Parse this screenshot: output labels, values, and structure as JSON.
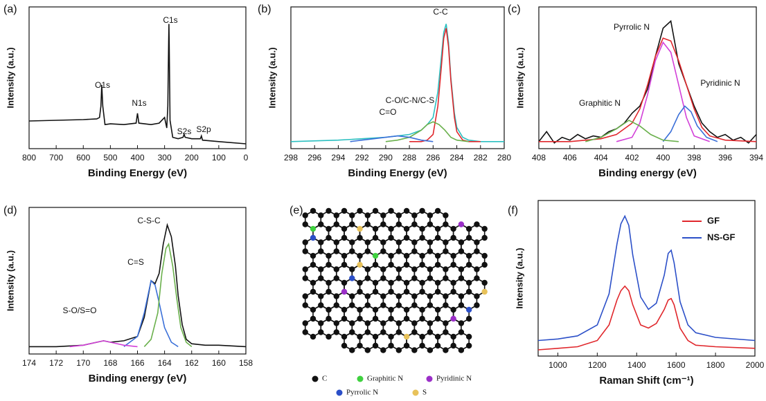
{
  "chart_data": [
    {
      "type": "line",
      "label": "(a)",
      "xlabel": "Binding Energy (eV)",
      "ylabel": "Intensity (a.u.)",
      "xlim": [
        800,
        0
      ],
      "xticks": [
        800,
        700,
        600,
        500,
        400,
        300,
        200,
        100,
        0
      ],
      "ylim": [
        0,
        100
      ],
      "series": [
        {
          "color": "#111111",
          "x": [
            800,
            700,
            600,
            550,
            540,
            535,
            532,
            528,
            520,
            500,
            450,
            405,
            400,
            395,
            350,
            320,
            300,
            292,
            288,
            285,
            284,
            283,
            280,
            270,
            250,
            232,
            228,
            224,
            200,
            168,
            164,
            160,
            100,
            0
          ],
          "values": [
            19.5,
            20,
            20.5,
            21,
            22,
            30,
            45,
            30,
            17,
            17.5,
            17,
            18,
            25,
            18,
            17,
            18,
            22,
            14.6,
            30,
            75,
            88,
            75,
            20,
            8,
            7,
            8,
            10,
            8,
            7,
            7,
            9,
            6,
            5,
            3.4
          ]
        }
      ],
      "annotations": [
        {
          "text": "O1s",
          "color": "#111111"
        },
        {
          "text": "N1s",
          "color": "#111111"
        },
        {
          "text": "C1s",
          "color": "#111111"
        },
        {
          "text": "S2s",
          "color": "#111111"
        },
        {
          "text": "S2p",
          "color": "#111111"
        }
      ]
    },
    {
      "type": "line",
      "label": "(b)",
      "xlabel": "Binding Energy (eV)",
      "ylabel": "Intensity (a.u.)",
      "xlim": [
        298,
        280
      ],
      "xticks": [
        298,
        296,
        294,
        292,
        290,
        288,
        286,
        284,
        282,
        280
      ],
      "ylim": [
        0,
        100
      ],
      "series": [
        {
          "color": "#2bbfc0",
          "x": [
            298,
            294,
            292,
            290,
            289,
            288,
            287,
            286.5,
            286,
            285.6,
            285.3,
            285.1,
            284.9,
            284.7,
            284.5,
            284.2,
            284,
            283.5,
            283,
            282,
            280
          ],
          "values": [
            5,
            6,
            7,
            8,
            9,
            10,
            13,
            17,
            22,
            40,
            65,
            82,
            88,
            75,
            50,
            25,
            15,
            8,
            6,
            5,
            5
          ]
        },
        {
          "color": "#e0262b",
          "x": [
            288,
            287,
            286.5,
            286,
            285.6,
            285.3,
            285.1,
            284.9,
            284.7,
            284.5,
            284.2,
            284,
            283.5,
            283,
            282
          ],
          "values": [
            5,
            5,
            6,
            10,
            30,
            58,
            78,
            85,
            72,
            48,
            22,
            12,
            6,
            5,
            5
          ]
        },
        {
          "color": "#6ab04c",
          "x": [
            290,
            289,
            288,
            287,
            286.5,
            286,
            285.5,
            285,
            284.5,
            284,
            283
          ],
          "values": [
            5,
            6,
            8,
            13,
            17,
            19,
            17,
            13,
            8,
            6,
            5
          ]
        },
        {
          "color": "#3a6fd8",
          "x": [
            293,
            292,
            291,
            290,
            289,
            288,
            287,
            286
          ],
          "values": [
            5,
            6,
            7,
            8,
            9,
            8,
            6,
            5
          ]
        }
      ],
      "annotations": [
        {
          "text": "C-C",
          "color": "#e0262b"
        },
        {
          "text": "C-O/C-N/C-S",
          "color": "#6ab04c"
        },
        {
          "text": "C=O",
          "color": "#3a6fd8"
        }
      ]
    },
    {
      "type": "line",
      "label": "(c)",
      "xlabel": "Binding energy (eV)",
      "ylabel": "Intensity (a.u.)",
      "xlim": [
        408,
        394
      ],
      "xticks": [
        408,
        406,
        404,
        402,
        400,
        398,
        396,
        394
      ],
      "ylim": [
        0,
        100
      ],
      "series": [
        {
          "color": "#111111",
          "x": [
            408,
            407.5,
            407,
            406.5,
            406,
            405.5,
            405,
            404.5,
            404,
            403.5,
            403,
            402.5,
            402,
            401.5,
            401,
            400.5,
            400,
            399.5,
            399,
            398.5,
            398,
            397.5,
            397,
            396.5,
            396,
            395.5,
            395,
            394.5,
            394
          ],
          "values": [
            5,
            12,
            4,
            8,
            6,
            10,
            7,
            9,
            8,
            12,
            14,
            18,
            25,
            30,
            42,
            65,
            85,
            90,
            60,
            45,
            30,
            18,
            12,
            8,
            10,
            6,
            8,
            4,
            10
          ]
        },
        {
          "color": "#e0262b",
          "x": [
            408,
            406,
            404,
            403,
            402,
            401.5,
            401,
            400.5,
            400,
            399.5,
            399,
            398.5,
            398,
            397.5,
            397,
            396,
            394
          ],
          "values": [
            5,
            5,
            7,
            10,
            18,
            28,
            45,
            65,
            78,
            76,
            62,
            45,
            28,
            15,
            9,
            6,
            5
          ]
        },
        {
          "color": "#d23fd8",
          "x": [
            403,
            402,
            401.5,
            401,
            400.5,
            400,
            399.5,
            399,
            398.5,
            398,
            397
          ],
          "values": [
            5,
            8,
            18,
            38,
            62,
            75,
            68,
            45,
            22,
            9,
            5
          ]
        },
        {
          "color": "#3a6fd8",
          "x": [
            400,
            399.5,
            399,
            398.6,
            398.2,
            397.8,
            397.2,
            396.5
          ],
          "values": [
            5,
            12,
            24,
            30,
            26,
            16,
            8,
            5
          ]
        },
        {
          "color": "#6ab04c",
          "x": [
            405,
            404,
            403,
            402.2,
            401.5,
            400.8,
            400,
            399
          ],
          "values": [
            5,
            8,
            14,
            20,
            16,
            10,
            6,
            5
          ]
        }
      ],
      "annotations": [
        {
          "text": "Pyrrolic N",
          "color": "#d23fd8"
        },
        {
          "text": "Pyridinic N",
          "color": "#3a6fd8"
        },
        {
          "text": "Graphitic N",
          "color": "#6ab04c"
        }
      ]
    },
    {
      "type": "line",
      "label": "(d)",
      "xlabel": "Binding energy (eV)",
      "ylabel": "Intensity (a.u.)",
      "xlim": [
        174,
        158
      ],
      "xticks": [
        174,
        172,
        170,
        168,
        166,
        164,
        162,
        160,
        158
      ],
      "ylim": [
        0,
        100
      ],
      "series": [
        {
          "color": "#111111",
          "x": [
            174,
            172,
            170,
            169,
            168.5,
            168,
            167,
            166,
            165.5,
            165,
            164.7,
            164.4,
            164.1,
            163.8,
            163.5,
            163.2,
            163,
            162.7,
            162.4,
            162,
            161,
            160,
            158
          ],
          "values": [
            5,
            5,
            6,
            8,
            9,
            8,
            9,
            12,
            25,
            50,
            48,
            55,
            75,
            88,
            80,
            60,
            40,
            20,
            10,
            7,
            6,
            6,
            5
          ]
        },
        {
          "color": "#3a6fd8",
          "x": [
            167,
            166,
            165.5,
            165,
            164.7,
            164.4,
            164,
            163.5,
            163
          ],
          "values": [
            5,
            12,
            28,
            50,
            47,
            35,
            18,
            8,
            5
          ]
        },
        {
          "color": "#6ab04c",
          "x": [
            165.5,
            165,
            164.5,
            164.2,
            163.9,
            163.7,
            163.4,
            163.1,
            162.8,
            162.4,
            162
          ],
          "values": [
            5,
            10,
            28,
            55,
            72,
            75,
            60,
            38,
            18,
            8,
            5
          ]
        },
        {
          "color": "#d23fd8",
          "x": [
            171,
            170,
            169,
            168.5,
            168,
            167,
            166
          ],
          "values": [
            5,
            6,
            8,
            9,
            8,
            6,
            5
          ]
        }
      ],
      "annotations": [
        {
          "text": "C-S-C",
          "color": "#6ab04c"
        },
        {
          "text": "C=S",
          "color": "#3a6fd8"
        },
        {
          "text": "S-O/S=O",
          "color": "#d23fd8"
        }
      ]
    },
    {
      "type": "line",
      "label": "(f)",
      "xlabel": "Raman Shift (cm⁻¹)",
      "ylabel": "Intensity (a.u.)",
      "xlim": [
        900,
        2000
      ],
      "xticks": [
        1000,
        1200,
        1400,
        1600,
        1800,
        2000
      ],
      "ylim": [
        0,
        100
      ],
      "legend": "upper right",
      "series": [
        {
          "name": "GF",
          "color": "#e0262b",
          "x": [
            900,
            1000,
            1100,
            1200,
            1260,
            1300,
            1320,
            1340,
            1360,
            1380,
            1420,
            1460,
            1500,
            1540,
            1560,
            1575,
            1590,
            1620,
            1660,
            1700,
            1800,
            2000
          ],
          "values": [
            4,
            5,
            6,
            10,
            20,
            36,
            42,
            45,
            42,
            33,
            20,
            18,
            21,
            30,
            36,
            37,
            33,
            18,
            10,
            7,
            6,
            5
          ]
        },
        {
          "name": "NS-GF",
          "color": "#2b4fc8",
          "x": [
            900,
            1000,
            1100,
            1200,
            1260,
            1300,
            1320,
            1340,
            1360,
            1380,
            1420,
            1460,
            1500,
            1540,
            1560,
            1575,
            1590,
            1620,
            1660,
            1700,
            1800,
            2000
          ],
          "values": [
            10,
            11,
            13,
            20,
            40,
            72,
            85,
            90,
            84,
            65,
            38,
            30,
            34,
            52,
            66,
            68,
            60,
            35,
            20,
            15,
            12,
            10
          ]
        }
      ],
      "annotations": []
    }
  ],
  "diagram": {
    "label": "(e)",
    "legend": [
      {
        "text": "C",
        "color": "#111111"
      },
      {
        "text": "Graphitic N",
        "color": "#3fd13f"
      },
      {
        "text": "Pyridinic N",
        "color": "#9b2fc8"
      },
      {
        "text": "Pyrrolic N",
        "color": "#2b4fc8"
      },
      {
        "text": "S",
        "color": "#e8c25a"
      }
    ]
  }
}
